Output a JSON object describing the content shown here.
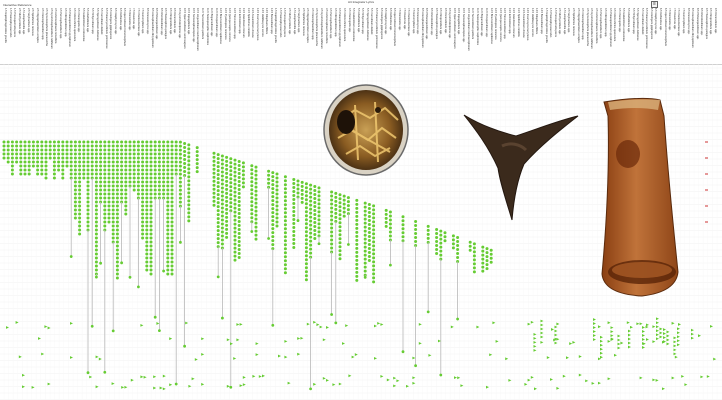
{
  "page": {
    "title": "Art Integrator Lyrics",
    "header_left": "Interactive Reference",
    "menu_glyph": "≡"
  },
  "chart_data": {
    "type": "scatter",
    "description_kind": "range chart",
    "columns": 156,
    "rows": [
      142,
      146,
      150,
      154,
      158,
      162,
      166,
      170,
      174,
      178,
      182,
      186,
      190,
      194,
      198,
      202,
      206,
      210,
      214,
      218,
      222,
      226,
      230,
      234,
      238,
      242,
      246,
      250,
      254,
      258,
      262
    ],
    "taxa_labels": [
      "1.5 Haplophragmoides gracilis",
      "1.5 Prasinophyceae indet.",
      "1.5 Pterospermella parva",
      "2.5 Micrhystridium spp.",
      "1.5 Leiosphaeridia spp.",
      "2.5 Veryhachium spp.",
      "2.5 Spiniferites ramosus",
      "2.5 Oligosphaeridium complex",
      "3.5 Cleistosphaeridium spp.",
      "3.5 Systematophora placacantha",
      "3.5 Hystrichosphaeridium tubiferum",
      "3.5 Achomosphaera ramulifera",
      "4.5 Pervosphaeridium spp.",
      "4.5 Cribroperidinium spp.",
      "4.5 Palaeoperidinium pyrophorum",
      "4.5 Odontochitina operculata",
      "4.5 Chatangiella spp.",
      "5.5 Isabelidinium cooksoniae",
      "5.5 Alterbidinium spp.",
      "5.5 Trithyrodinium spp.",
      "5.5 Spongodinium delitiense",
      "5.5 Cerodinium diebelii",
      "6.5 Palaeocystodinium golzowense",
      "6.5 Areoligera gippingensis",
      "6.5 Glaphyrocysta spp.",
      "6.5 Deflandrea spp.",
      "6.5 Apectodinium homomorphum",
      "7.5 Wetzeliella spp.",
      "7.5 Kisselovia spp.",
      "7.5 Charlesdowniea spp.",
      "7.5 Homotryblium spp.",
      "8.5 Enneadocysta spp.",
      "8.5 Areosphaeridium diktyoplokum",
      "8.5 Phthanoperidinium spp.",
      "8.5 Rhombodinium spp.",
      "9.5 Thalassiphora pelagica",
      "9.5 Chiropteridium spp.",
      "9.5 Distatodinium spp.",
      "9.5 Hystrichokolpoma spp.",
      "10.5 Operculodinium centrocarpum",
      "10.5 Impagidinium spp.",
      "10.5 Nematosphaeropsis spp.",
      "10.5 Lingulodinium machaerophorum",
      "11.5 Tectatodinium pellitum",
      "11.5 Selenopemphix nephroides",
      "11.5 Brigantedinium spp.",
      "11.5 Protoperidinium spp.",
      "12.5 Bitectatodinium tepikiense",
      "12.5 Pyxidinopsis reticulata",
      "12.5 Quinquecuspis concreta",
      "12.5 Trinovantedinium spp.",
      "13.5 Echinidinium spp.",
      "13.5 Islandinium minutum",
      "13.5 Spiniferites mirabilis",
      "13.5 Ataxiodinium choane",
      "14.5 Invertocysta lacrymosa",
      "14.5 Habibacysta tectata",
      "14.5 Filisphaera filifera",
      "14.5 Barssidinium spp."
    ],
    "specimens": [
      "Dinocyst (spherical)",
      "Acritarch (triangular)",
      "Chitinozoan (flask)"
    ]
  }
}
